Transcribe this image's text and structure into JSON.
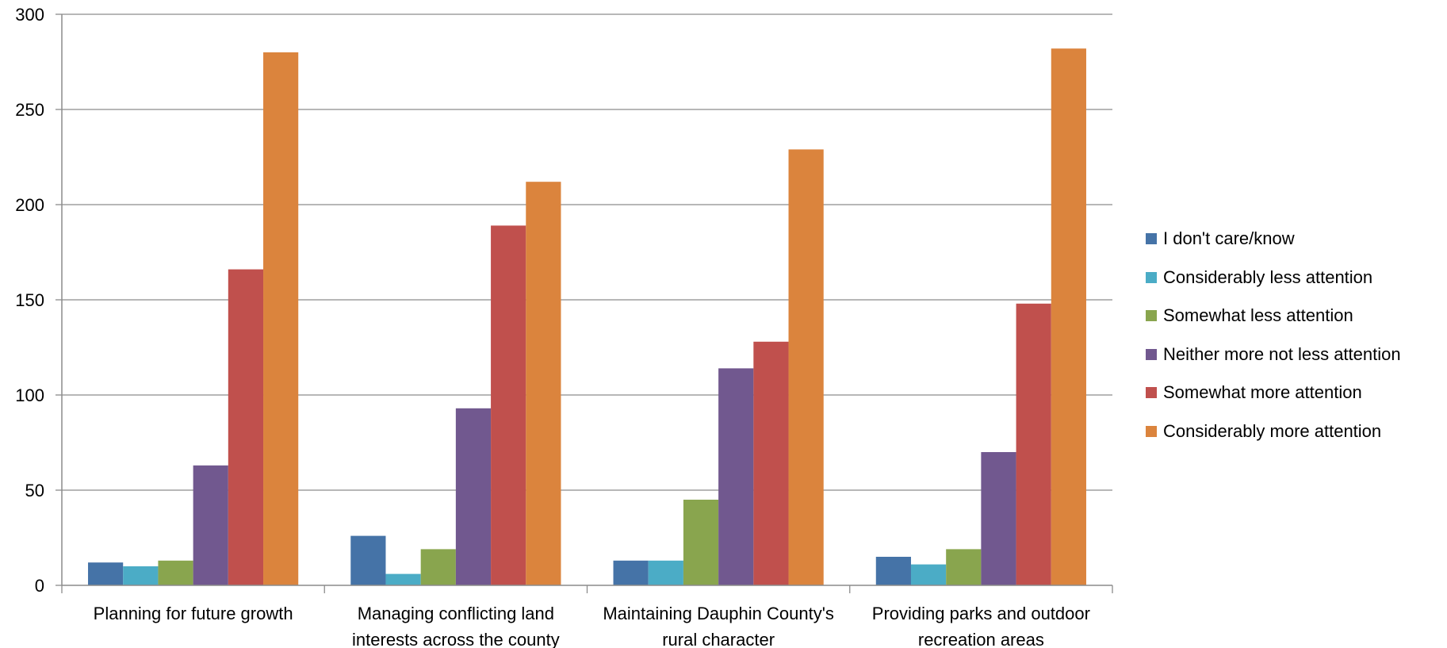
{
  "chart_data": {
    "type": "bar",
    "categories": [
      [
        "Planning for future growth"
      ],
      [
        "Managing conflicting land",
        "interests across the county"
      ],
      [
        "Maintaining Dauphin County's",
        "rural character"
      ],
      [
        "Providing parks and outdoor",
        "recreation areas"
      ]
    ],
    "series": [
      {
        "name": "I don't care/know",
        "color": "#4573a7",
        "values": [
          12,
          26,
          13,
          15
        ]
      },
      {
        "name": "Considerably less attention",
        "color": "#4bacc6",
        "values": [
          10,
          6,
          13,
          11
        ]
      },
      {
        "name": "Somewhat less attention",
        "color": "#89a54e",
        "values": [
          13,
          19,
          45,
          19
        ]
      },
      {
        "name": "Neither more not less attention",
        "color": "#71588f",
        "values": [
          63,
          93,
          114,
          70
        ]
      },
      {
        "name": "Somewhat more attention",
        "color": "#c0504d",
        "values": [
          166,
          189,
          128,
          148
        ]
      },
      {
        "name": "Considerably more attention",
        "color": "#db843d",
        "values": [
          280,
          212,
          229,
          282
        ]
      }
    ],
    "ylim": [
      0,
      300
    ],
    "yticks": [
      0,
      50,
      100,
      150,
      200,
      250,
      300
    ],
    "grid": true,
    "legend_position": "right"
  }
}
